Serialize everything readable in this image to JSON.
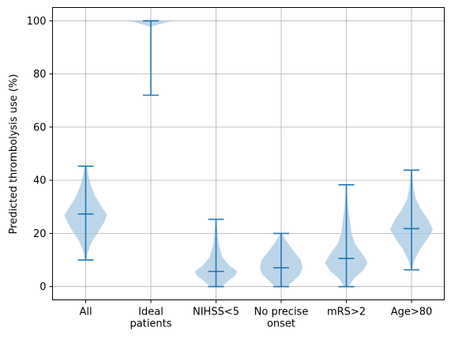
{
  "chart_data": {
    "type": "violin",
    "title": "",
    "xlabel": "",
    "ylabel": "Predicted thrombolysis use (%)",
    "ylim": [
      -5,
      105
    ],
    "yticks": [
      0,
      20,
      40,
      60,
      80,
      100
    ],
    "grid": true,
    "colors": {
      "body": "#a6c8e2",
      "line": "#1f77b4",
      "grid": "#b0b0b0",
      "axis": "#000000"
    },
    "categories": [
      "All",
      "Ideal\npatients",
      "NIHSS<5",
      "No precise\nonset",
      "mRS>2",
      "Age>80"
    ],
    "violins": [
      {
        "min": 10,
        "median": 27.3,
        "max": 45.3,
        "density": [
          [
            10,
            0.02
          ],
          [
            13,
            0.1
          ],
          [
            17,
            0.3
          ],
          [
            20,
            0.55
          ],
          [
            24,
            0.85
          ],
          [
            27,
            1.0
          ],
          [
            30,
            0.75
          ],
          [
            34,
            0.45
          ],
          [
            38,
            0.25
          ],
          [
            42,
            0.12
          ],
          [
            45.3,
            0.05
          ]
        ]
      },
      {
        "min": 72,
        "median": 100,
        "max": 100,
        "density": [
          [
            97.8,
            0.02
          ],
          [
            99,
            0.55
          ],
          [
            100,
            1.0
          ]
        ]
      },
      {
        "min": 0,
        "median": 5.7,
        "max": 25.3,
        "density": [
          [
            0,
            0.28
          ],
          [
            2,
            0.55
          ],
          [
            4,
            0.88
          ],
          [
            5.7,
            1.0
          ],
          [
            8,
            0.62
          ],
          [
            11,
            0.3
          ],
          [
            15,
            0.16
          ],
          [
            19,
            0.08
          ],
          [
            22,
            0.05
          ],
          [
            25.3,
            0.02
          ]
        ]
      },
      {
        "min": 0,
        "median": 7.1,
        "max": 20,
        "density": [
          [
            0,
            0.28
          ],
          [
            2,
            0.55
          ],
          [
            4.5,
            0.88
          ],
          [
            7,
            1.0
          ],
          [
            10,
            0.92
          ],
          [
            13,
            0.62
          ],
          [
            16,
            0.35
          ],
          [
            18,
            0.18
          ],
          [
            20,
            0.05
          ]
        ]
      },
      {
        "min": 0,
        "median": 10.6,
        "max": 38.3,
        "density": [
          [
            0,
            0.1
          ],
          [
            3,
            0.35
          ],
          [
            6,
            0.78
          ],
          [
            9,
            1.0
          ],
          [
            12,
            0.78
          ],
          [
            16,
            0.42
          ],
          [
            20,
            0.24
          ],
          [
            25,
            0.16
          ],
          [
            30,
            0.08
          ],
          [
            35,
            0.03
          ],
          [
            38.3,
            0.02
          ]
        ]
      },
      {
        "min": 6.3,
        "median": 21.8,
        "max": 43.8,
        "density": [
          [
            6.3,
            0.02
          ],
          [
            10,
            0.15
          ],
          [
            14,
            0.4
          ],
          [
            18,
            0.75
          ],
          [
            21.5,
            1.0
          ],
          [
            25,
            0.8
          ],
          [
            29,
            0.45
          ],
          [
            33,
            0.2
          ],
          [
            38,
            0.08
          ],
          [
            43.8,
            0.02
          ]
        ]
      }
    ]
  }
}
